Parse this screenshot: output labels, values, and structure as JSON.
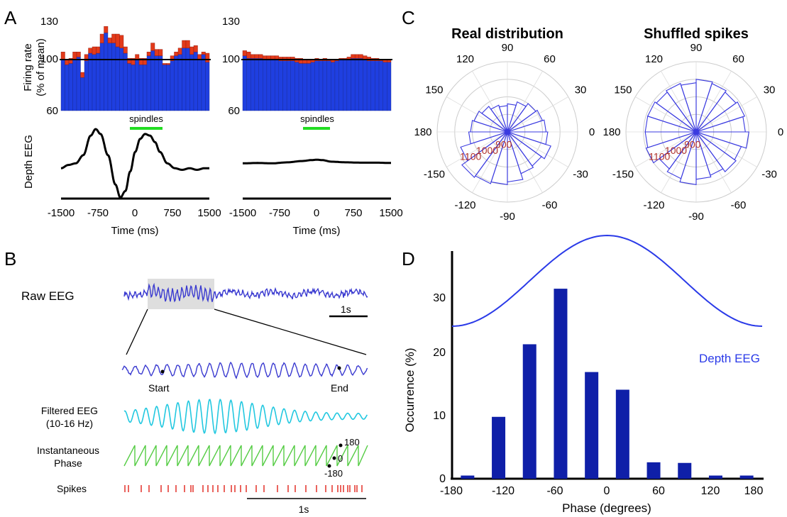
{
  "panels": {
    "A": {
      "letter": "A"
    },
    "B": {
      "letter": "B"
    },
    "C": {
      "letter": "C"
    },
    "D": {
      "letter": "D"
    }
  },
  "panel_a": {
    "ylabel_line1": "Firing rate",
    "ylabel_line2": "(% of mean)",
    "eeg_label": "Depth EEG",
    "spindles_label": "spindles",
    "xlabel": "Time (ms)",
    "colors": {
      "bar": "#1f3fe0",
      "excess": "#e23a1a",
      "spindle_bar": "#22dd22"
    }
  },
  "panel_b": {
    "raw_label": "Raw EEG",
    "scale_1s": "1s",
    "start_label": "Start",
    "end_label": "End",
    "filtered_line1": "Filtered EEG",
    "filtered_line2": "(10-16 Hz)",
    "phase_line1": "Instantaneous",
    "phase_line2": "Phase",
    "phase_180": "180",
    "phase_0": "0",
    "phase_neg180": "-180",
    "spikes_label": "Spikes",
    "scale_bottom": "1s",
    "colors": {
      "raw": "#3a3ad0",
      "filtered": "#22c8e0",
      "phase": "#55cc44",
      "spikes": "#e0221a"
    }
  },
  "panel_c": {
    "colors": {
      "wedge": "#3a3ae0",
      "ring": "#cccccc",
      "rlabel": "#b0302a"
    }
  },
  "panel_d": {
    "curve_label": "Depth EEG",
    "colors": {
      "bar": "#0f1fa8",
      "curve": "#2a3ae8"
    }
  },
  "chart_data": [
    {
      "id": "A-left-histogram",
      "type": "bar",
      "ylabel": "Firing rate\n(% of mean)",
      "ylim": [
        60,
        130
      ],
      "yticks": [
        "60",
        "100",
        "130"
      ],
      "mean_line": 100,
      "base": [
        100,
        96,
        97,
        100,
        102,
        86,
        99,
        105,
        104,
        105,
        113,
        121,
        113,
        113,
        110,
        109,
        105,
        97,
        96,
        100,
        96,
        96,
        103,
        107,
        103,
        103,
        96,
        96,
        99,
        103,
        104,
        109,
        109,
        104,
        106,
        100,
        104,
        98
      ],
      "values": [
        106,
        100,
        101,
        106,
        106,
        90,
        104,
        109,
        110,
        110,
        120,
        126,
        117,
        120,
        120,
        119,
        110,
        101,
        101,
        104,
        101,
        101,
        106,
        113,
        108,
        108,
        97,
        97,
        103,
        106,
        109,
        115,
        115,
        110,
        111,
        104,
        106,
        105
      ]
    },
    {
      "id": "A-right-histogram",
      "type": "bar",
      "ylim": [
        60,
        130
      ],
      "yticks": [
        "60",
        "100",
        "130"
      ],
      "mean_line": 100,
      "base": [
        103,
        101,
        101,
        101,
        101,
        100,
        100,
        100,
        100,
        99,
        99,
        99,
        99,
        98,
        97,
        97,
        97,
        98,
        99,
        99,
        99,
        99,
        98,
        99,
        100,
        100,
        100,
        101,
        101,
        101,
        100,
        99,
        99,
        99,
        99,
        98,
        98
      ],
      "values": [
        107,
        106,
        104,
        104,
        104,
        103,
        103,
        103,
        103,
        102,
        102,
        102,
        102,
        101,
        101,
        100,
        100,
        100,
        101,
        100,
        101,
        100,
        100,
        100,
        101,
        101,
        102,
        104,
        104,
        104,
        103,
        102,
        101,
        101,
        100,
        100,
        100
      ]
    },
    {
      "id": "A-EEG",
      "type": "line",
      "xlabel": "Time (ms)",
      "ylabel": "Depth EEG",
      "xlim": [
        -1500,
        1500
      ],
      "xticks": [
        "-1500",
        "-750",
        "0",
        "750",
        "1500"
      ],
      "spindle_window": [
        -250,
        250
      ],
      "series": [
        {
          "x": [
            -1500,
            -1350,
            -1200,
            -1050,
            -900,
            -800,
            -700,
            -550,
            -400,
            -300,
            -200,
            -100,
            0,
            100,
            200,
            300,
            400,
            500,
            650,
            800,
            950,
            1100,
            1250,
            1400,
            1500
          ],
          "y": [
            -0.2,
            -0.1,
            -0.05,
            0.2,
            0.8,
            1.0,
            0.85,
            0.2,
            -0.7,
            -1.1,
            -0.9,
            -0.3,
            0.3,
            0.7,
            0.85,
            0.8,
            0.6,
            0.3,
            -0.05,
            -0.2,
            -0.25,
            -0.2,
            -0.25,
            -0.2,
            -0.2
          ]
        },
        {
          "x": [
            -1500,
            -1200,
            -900,
            -600,
            -300,
            -100,
            0,
            100,
            300,
            600,
            900,
            1200,
            1500
          ],
          "y": [
            -0.05,
            -0.04,
            -0.05,
            -0.02,
            0.02,
            0.05,
            0.06,
            0.05,
            0.0,
            -0.02,
            -0.03,
            -0.03,
            -0.04
          ]
        }
      ]
    },
    {
      "id": "C-real-distribution",
      "type": "polar-bar",
      "title": "Real distribution",
      "theta_ticks": [
        "90",
        "60",
        "30",
        "0",
        "-30",
        "-60",
        "-90",
        "-120",
        "-150",
        "180",
        "150",
        "120"
      ],
      "r_ticks": [
        "900",
        "1000",
        "1100"
      ],
      "r_lim": [
        800,
        1200
      ],
      "bin_centers": [
        -171,
        -153,
        -135,
        -117,
        -99,
        -81,
        -63,
        -45,
        -27,
        -9,
        9,
        27,
        45,
        63,
        81,
        99,
        117,
        135,
        153,
        171
      ],
      "values": [
        1020,
        1080,
        1120,
        1110,
        1100,
        1085,
        1050,
        1040,
        1060,
        1030,
        1020,
        1010,
        1000,
        980,
        960,
        950,
        960,
        980,
        1000,
        1010
      ]
    },
    {
      "id": "C-shuffled-spikes",
      "type": "polar-bar",
      "title": "Shuffled spikes",
      "theta_ticks": [
        "90",
        "60",
        "30",
        "0",
        "-30",
        "-60",
        "-90",
        "-120",
        "-150",
        "180",
        "150",
        "120"
      ],
      "r_ticks": [
        "900",
        "1000",
        "1100"
      ],
      "r_lim": [
        800,
        1200
      ],
      "bin_centers": [
        -171,
        -153,
        -135,
        -117,
        -99,
        -81,
        -63,
        -45,
        -27,
        -9,
        9,
        27,
        45,
        63,
        81,
        99,
        117,
        135,
        153,
        171
      ],
      "values": [
        1090,
        1100,
        1060,
        1080,
        1100,
        1070,
        1060,
        1080,
        1070,
        1100,
        1080,
        1090,
        1080,
        1090,
        1100,
        1080,
        1090,
        1080,
        1090,
        1090
      ]
    },
    {
      "id": "D-phase-histogram",
      "type": "bar",
      "xlabel": "Phase (degrees)",
      "ylabel": "Occurrence (%)",
      "xlim": [
        -180,
        180
      ],
      "ylim": [
        0,
        36
      ],
      "xticks": [
        "-180",
        "-120",
        "-60",
        "0",
        "60",
        "120",
        "180"
      ],
      "yticks": [
        "0",
        "10",
        "20",
        "30"
      ],
      "x": [
        -162,
        -126,
        -90,
        -54,
        -18,
        18,
        54,
        90,
        126,
        162
      ],
      "values": [
        0.5,
        9.8,
        21.3,
        30.1,
        16.9,
        14.1,
        2.6,
        2.5,
        0.5,
        0.5
      ],
      "series": [
        {
          "name": "Depth EEG",
          "x": [
            -180,
            -150,
            -120,
            -90,
            -60,
            -30,
            0,
            30,
            60,
            90,
            120,
            150,
            180
          ],
          "y": [
            -1,
            -0.87,
            -0.5,
            0,
            0.5,
            0.87,
            1,
            0.87,
            0.5,
            0,
            -0.5,
            -0.87,
            -1
          ]
        }
      ]
    }
  ]
}
